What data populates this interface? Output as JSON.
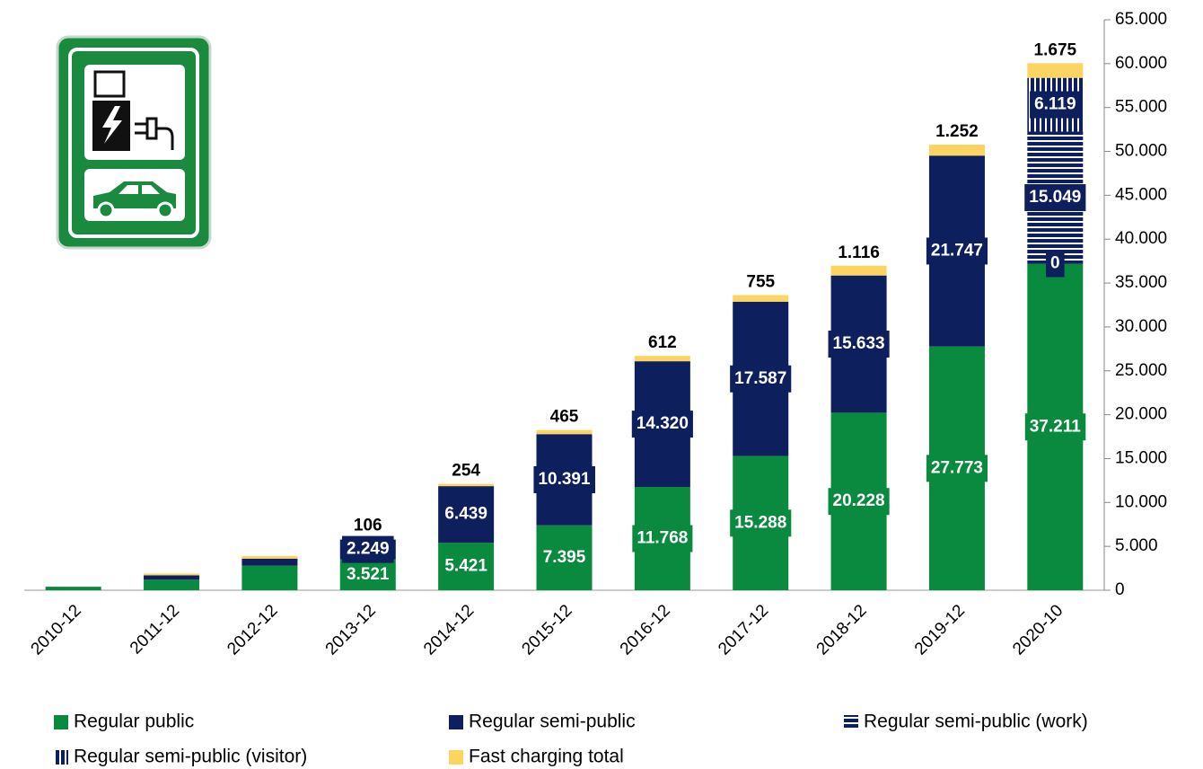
{
  "chart_data": {
    "type": "stacked_bar",
    "categories": [
      "2010-12",
      "2011-12",
      "2012-12",
      "2013-12",
      "2014-12",
      "2015-12",
      "2016-12",
      "2017-12",
      "2018-12",
      "2019-12",
      "2020-10"
    ],
    "series": [
      {
        "name": "Regular public",
        "color": "#0a8a3e",
        "values": [
          400,
          1200,
          2800,
          3521,
          5421,
          7395,
          11768,
          15288,
          20228,
          27773,
          37211
        ],
        "value_labels": [
          null,
          null,
          null,
          "3.521",
          "5.421",
          "7.395",
          "11.768",
          "15.288",
          "20.228",
          "27.773",
          "37.211"
        ]
      },
      {
        "name": "Regular semi-public",
        "color": "#0d1f5c",
        "values": [
          null,
          500,
          800,
          2249,
          6439,
          10391,
          14320,
          17587,
          15633,
          21747,
          0
        ],
        "value_labels": [
          null,
          null,
          null,
          "2.249",
          "6.439",
          "10.391",
          "14.320",
          "17.587",
          "15.633",
          "21.747",
          "0"
        ]
      },
      {
        "name": "Regular semi-public (work)",
        "color": "#0d1f5c",
        "pattern": "horizontal",
        "values": [
          null,
          null,
          null,
          null,
          null,
          null,
          null,
          null,
          null,
          null,
          15049
        ],
        "value_labels": [
          null,
          null,
          null,
          null,
          null,
          null,
          null,
          null,
          null,
          null,
          "15.049"
        ]
      },
      {
        "name": "Regular semi-public (visitor)",
        "color": "#0d1f5c",
        "pattern": "vertical",
        "values": [
          null,
          null,
          null,
          null,
          null,
          null,
          null,
          null,
          null,
          null,
          6119
        ],
        "value_labels": [
          null,
          null,
          null,
          null,
          null,
          null,
          null,
          null,
          null,
          null,
          "6.119"
        ]
      },
      {
        "name": "Fast charging total",
        "color": "#fbd462",
        "values": [
          null,
          200,
          300,
          106,
          254,
          465,
          612,
          755,
          1116,
          1252,
          1675
        ],
        "value_labels": [
          null,
          null,
          null,
          "106",
          "254",
          "465",
          "612",
          "755",
          "1.116",
          "1.252",
          "1.675"
        ]
      }
    ],
    "ylim": [
      0,
      65000
    ],
    "yticks": [
      0,
      {
        "value": 5000,
        "label": "5.000"
      },
      {
        "value": 10000,
        "label": "10.000"
      },
      {
        "value": 15000,
        "label": "15.000"
      },
      {
        "value": 20000,
        "label": "20.000"
      },
      {
        "value": 25000,
        "label": "25.000"
      },
      {
        "value": 30000,
        "label": "30.000"
      },
      {
        "value": 35000,
        "label": "35.000"
      },
      {
        "value": 40000,
        "label": "40.000"
      },
      {
        "value": 45000,
        "label": "45.000"
      },
      {
        "value": 50000,
        "label": "50.000"
      },
      {
        "value": 55000,
        "label": "55.000"
      },
      {
        "value": 60000,
        "label": "60.000"
      },
      {
        "value": 65000,
        "label": "65.000"
      }
    ],
    "y_axis_side": "right"
  }
}
